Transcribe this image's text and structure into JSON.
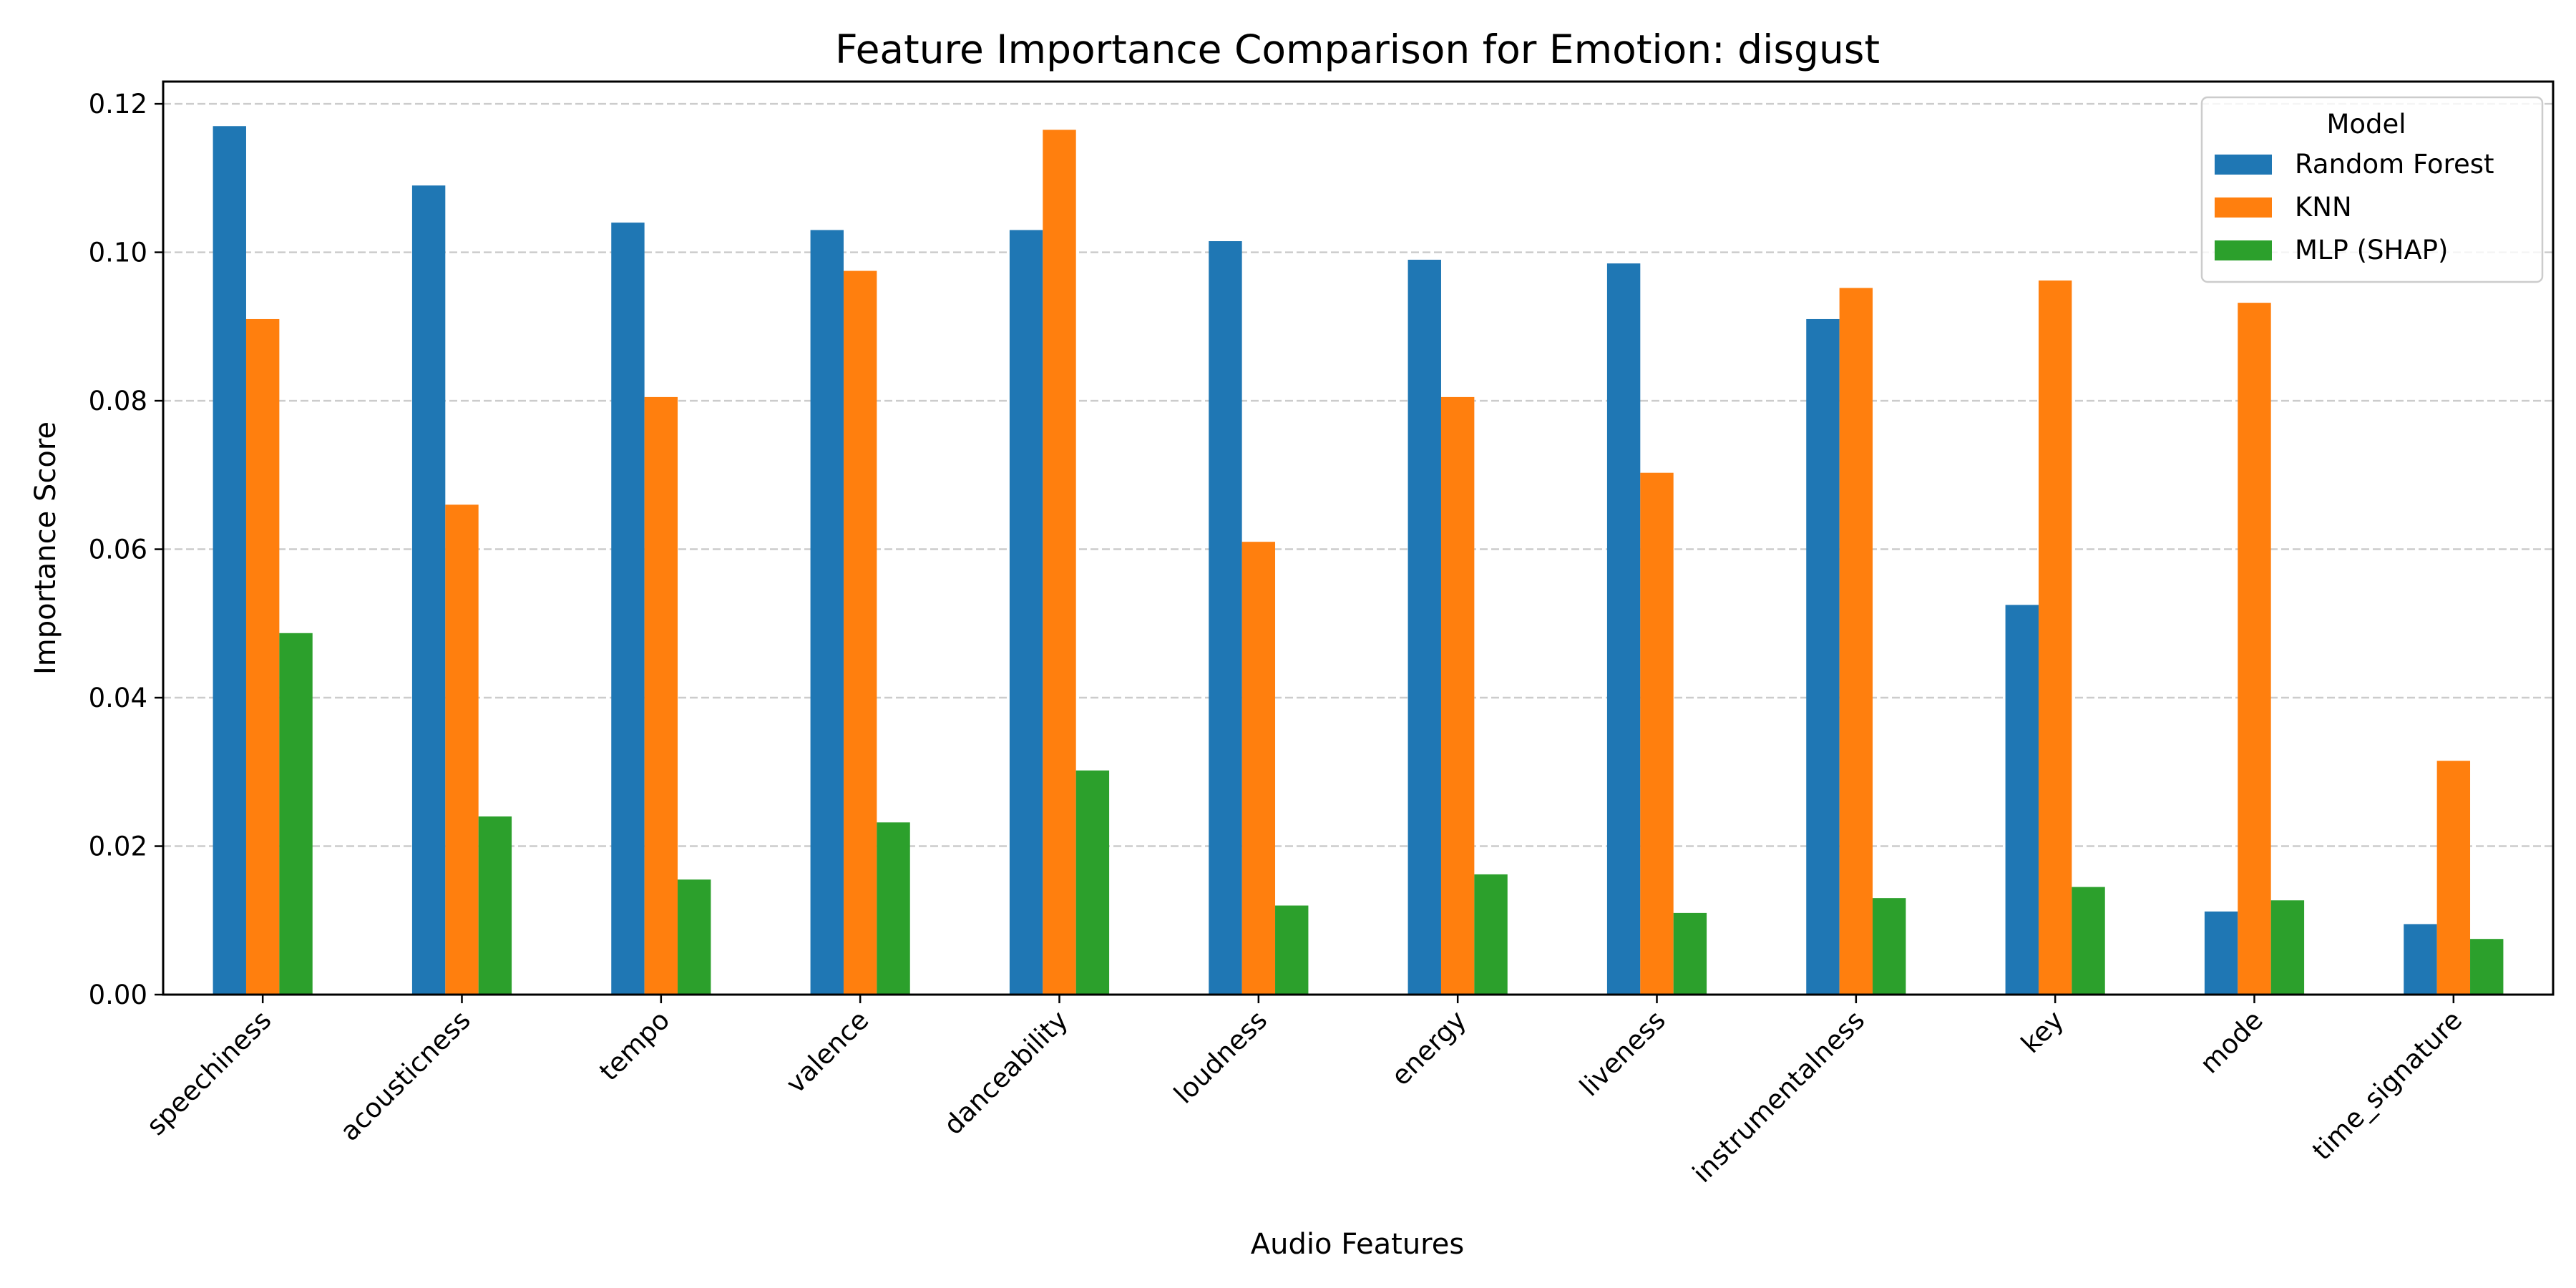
{
  "chart_data": {
    "type": "bar",
    "title": "Feature Importance Comparison for Emotion: disgust",
    "xlabel": "Audio Features",
    "ylabel": "Importance Score",
    "ylim": [
      0,
      0.123
    ],
    "yticks": [
      0.0,
      0.02,
      0.04,
      0.06,
      0.08,
      0.1,
      0.12
    ],
    "ytick_labels": [
      "0.00",
      "0.02",
      "0.04",
      "0.06",
      "0.08",
      "0.10",
      "0.12"
    ],
    "grid": "horizontal dashed",
    "legend": {
      "title": "Model",
      "placement": "top-right"
    },
    "categories": [
      "speechiness",
      "acousticness",
      "tempo",
      "valence",
      "danceability",
      "loudness",
      "energy",
      "liveness",
      "instrumentalness",
      "key",
      "mode",
      "time_signature"
    ],
    "series": [
      {
        "name": "Random Forest",
        "color": "#1f77b4",
        "values": [
          0.117,
          0.109,
          0.104,
          0.103,
          0.103,
          0.1015,
          0.099,
          0.0985,
          0.091,
          0.0525,
          0.0112,
          0.0095
        ]
      },
      {
        "name": "KNN",
        "color": "#ff7f0e",
        "values": [
          0.091,
          0.066,
          0.0805,
          0.0975,
          0.1165,
          0.061,
          0.0805,
          0.0703,
          0.0952,
          0.0962,
          0.0932,
          0.0315
        ]
      },
      {
        "name": "MLP (SHAP)",
        "color": "#2ca02c",
        "values": [
          0.0487,
          0.024,
          0.0155,
          0.0232,
          0.0302,
          0.012,
          0.0162,
          0.011,
          0.013,
          0.0145,
          0.0127,
          0.0075
        ]
      }
    ]
  }
}
